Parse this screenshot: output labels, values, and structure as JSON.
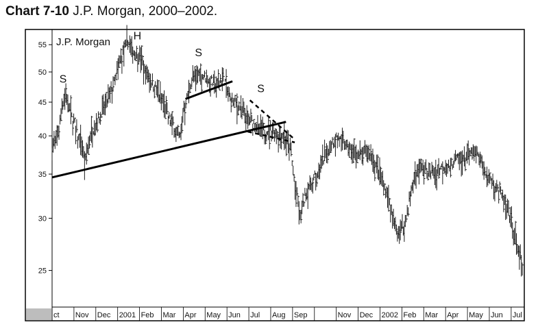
{
  "caption": {
    "number": "Chart 7-10",
    "title": "J.P. Morgan, 2000–2002."
  },
  "chart_data": {
    "type": "bar",
    "style": "ohlc",
    "title": "J.P. Morgan",
    "scale": "log",
    "ylim": [
      22,
      58
    ],
    "y_ticks": [
      25,
      30,
      35,
      40,
      45,
      50,
      55
    ],
    "x_labels": [
      "ct",
      "Nov",
      "Dec",
      "2001",
      "Feb",
      "Mar",
      "Apr",
      "May",
      "Jun",
      "Jul",
      "Aug",
      "Sep",
      "Nov",
      "Dec",
      "2002",
      "Feb",
      "Mar",
      "Apr",
      "May",
      "Jun",
      "Jul"
    ],
    "x_label_months": [
      0,
      1,
      2,
      3,
      4,
      5,
      6,
      7,
      8,
      9,
      10,
      11,
      13,
      14,
      15,
      16,
      17,
      18,
      19,
      20,
      21
    ],
    "x_range_months": [
      0,
      21.6
    ],
    "price_path": [
      [
        0.0,
        38.5
      ],
      [
        0.3,
        41
      ],
      [
        0.45,
        45
      ],
      [
        0.65,
        46.5
      ],
      [
        0.9,
        43
      ],
      [
        1.2,
        40
      ],
      [
        1.4,
        38.5
      ],
      [
        1.5,
        36
      ],
      [
        1.7,
        40
      ],
      [
        2.0,
        42
      ],
      [
        2.3,
        44
      ],
      [
        2.6,
        46
      ],
      [
        2.9,
        49
      ],
      [
        3.1,
        52
      ],
      [
        3.3,
        54
      ],
      [
        3.45,
        56
      ],
      [
        3.7,
        54
      ],
      [
        4.0,
        53.5
      ],
      [
        4.2,
        51
      ],
      [
        4.5,
        49
      ],
      [
        4.8,
        47
      ],
      [
        5.0,
        46
      ],
      [
        5.3,
        43
      ],
      [
        5.6,
        41.5
      ],
      [
        5.85,
        40
      ],
      [
        6.0,
        44
      ],
      [
        6.2,
        46
      ],
      [
        6.4,
        49
      ],
      [
        6.7,
        50
      ],
      [
        7.1,
        49
      ],
      [
        7.3,
        48.5
      ],
      [
        7.5,
        48
      ],
      [
        7.7,
        49
      ],
      [
        7.9,
        48.8
      ],
      [
        8.1,
        46
      ],
      [
        8.3,
        45
      ],
      [
        8.6,
        44.5
      ],
      [
        8.9,
        42.5
      ],
      [
        9.2,
        42
      ],
      [
        9.5,
        41
      ],
      [
        9.8,
        40.8
      ],
      [
        10.1,
        41
      ],
      [
        10.4,
        40.5
      ],
      [
        10.6,
        40.5
      ],
      [
        10.9,
        38.5
      ],
      [
        11.05,
        35
      ],
      [
        11.2,
        32.5
      ],
      [
        11.35,
        30
      ],
      [
        11.5,
        32
      ],
      [
        11.8,
        34
      ],
      [
        12.1,
        35
      ],
      [
        12.4,
        37
      ],
      [
        12.7,
        39
      ],
      [
        13.0,
        40
      ],
      [
        13.4,
        39
      ],
      [
        13.7,
        38
      ],
      [
        14.0,
        37.5
      ],
      [
        14.4,
        38
      ],
      [
        14.7,
        37
      ],
      [
        15.0,
        35
      ],
      [
        15.3,
        33
      ],
      [
        15.6,
        30
      ],
      [
        15.8,
        28.5
      ],
      [
        16.0,
        29
      ],
      [
        16.2,
        30
      ],
      [
        16.4,
        33
      ],
      [
        16.6,
        35
      ],
      [
        16.9,
        36
      ],
      [
        17.2,
        35.5
      ],
      [
        17.5,
        35.5
      ],
      [
        17.8,
        36
      ],
      [
        18.1,
        36
      ],
      [
        18.4,
        37
      ],
      [
        18.7,
        37
      ],
      [
        19.0,
        37.5
      ],
      [
        19.3,
        38
      ],
      [
        19.6,
        37
      ],
      [
        19.9,
        35
      ],
      [
        20.2,
        34
      ],
      [
        20.5,
        33
      ],
      [
        20.8,
        31
      ],
      [
        21.1,
        29
      ],
      [
        21.35,
        27
      ],
      [
        21.55,
        24.5
      ]
    ],
    "annotations": [
      {
        "text": "S",
        "month": 0.5,
        "price": 48.2
      },
      {
        "text": "H",
        "month": 3.9,
        "price": 56
      },
      {
        "text": "S",
        "month": 6.7,
        "price": 52.8
      },
      {
        "text": "S",
        "month": 9.55,
        "price": 46.6
      }
    ],
    "trendlines": [
      {
        "style": "solid",
        "from": [
          0.0,
          34.6
        ],
        "to": [
          10.7,
          42.0
        ]
      },
      {
        "style": "solid",
        "from": [
          6.1,
          45.5
        ],
        "to": [
          8.25,
          48.4
        ]
      },
      {
        "style": "dashed",
        "from": [
          9.05,
          45.3
        ],
        "to": [
          11.1,
          39.5
        ]
      },
      {
        "style": "dashed",
        "from": [
          8.95,
          40.6
        ],
        "to": [
          11.1,
          39.1
        ]
      }
    ]
  }
}
